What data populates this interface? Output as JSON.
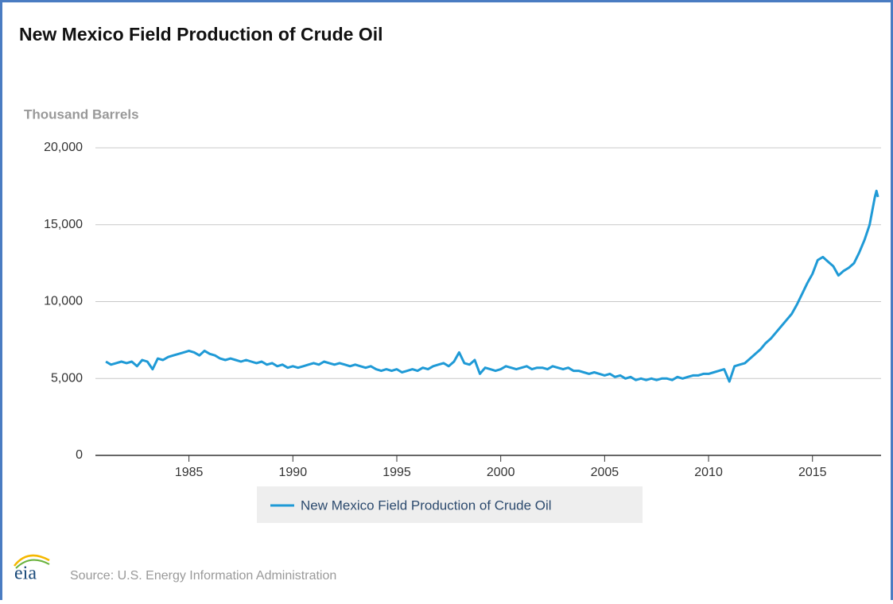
{
  "chart_data": {
    "type": "line",
    "title": "New Mexico Field Production of Crude Oil",
    "y_axis_label": "Thousand Barrels",
    "source": "Source: U.S. Energy Information Administration",
    "logo": "eia",
    "xlim": [
      1980.5,
      2018.3
    ],
    "xticks": [
      1985,
      1990,
      1995,
      2000,
      2005,
      2010,
      2015
    ],
    "ylim": [
      0,
      20000
    ],
    "yticks": [
      0,
      {
        "value": 5000,
        "label": "5,000"
      },
      {
        "value": 10000,
        "label": "10,000"
      },
      {
        "value": 15000,
        "label": "15,000"
      },
      {
        "value": 20000,
        "label": "20,000"
      }
    ],
    "grid": true,
    "legend": "bottom",
    "x": [
      1981,
      1981.25,
      1981.5,
      1981.75,
      1982,
      1982.25,
      1982.5,
      1982.75,
      1983,
      1983.25,
      1983.5,
      1983.75,
      1984,
      1984.25,
      1984.5,
      1984.75,
      1985,
      1985.25,
      1985.5,
      1985.75,
      1986,
      1986.25,
      1986.5,
      1986.75,
      1987,
      1987.25,
      1987.5,
      1987.75,
      1988,
      1988.25,
      1988.5,
      1988.75,
      1989,
      1989.25,
      1989.5,
      1989.75,
      1990,
      1990.25,
      1990.5,
      1990.75,
      1991,
      1991.25,
      1991.5,
      1991.75,
      1992,
      1992.25,
      1992.5,
      1992.75,
      1993,
      1993.25,
      1993.5,
      1993.75,
      1994,
      1994.25,
      1994.5,
      1994.75,
      1995,
      1995.25,
      1995.5,
      1995.75,
      1996,
      1996.25,
      1996.5,
      1996.75,
      1997,
      1997.25,
      1997.5,
      1997.75,
      1998,
      1998.25,
      1998.5,
      1998.75,
      1999,
      1999.25,
      1999.5,
      1999.75,
      2000,
      2000.25,
      2000.5,
      2000.75,
      2001,
      2001.25,
      2001.5,
      2001.75,
      2002,
      2002.25,
      2002.5,
      2002.75,
      2003,
      2003.25,
      2003.5,
      2003.75,
      2004,
      2004.25,
      2004.5,
      2004.75,
      2005,
      2005.25,
      2005.5,
      2005.75,
      2006,
      2006.25,
      2006.5,
      2006.75,
      2007,
      2007.25,
      2007.5,
      2007.75,
      2008,
      2008.25,
      2008.5,
      2008.75,
      2009,
      2009.25,
      2009.5,
      2009.75,
      2010,
      2010.25,
      2010.5,
      2010.75,
      2011,
      2011.25,
      2011.5,
      2011.75,
      2012,
      2012.25,
      2012.5,
      2012.75,
      2013,
      2013.25,
      2013.5,
      2013.75,
      2014,
      2014.25,
      2014.5,
      2014.75,
      2015,
      2015.25,
      2015.5,
      2015.75,
      2016,
      2016.25,
      2016.5,
      2016.75,
      2017,
      2017.25,
      2017.5,
      2017.75,
      2018,
      2018.08,
      2018.15
    ],
    "series": [
      {
        "name": "New Mexico Field Production of Crude Oil",
        "color": "#1f9ad6",
        "values": [
          6100,
          5900,
          6000,
          6100,
          6000,
          6100,
          5800,
          6200,
          6100,
          5600,
          6300,
          6200,
          6400,
          6500,
          6600,
          6700,
          6800,
          6700,
          6500,
          6800,
          6600,
          6500,
          6300,
          6200,
          6300,
          6200,
          6100,
          6200,
          6100,
          6000,
          6100,
          5900,
          6000,
          5800,
          5900,
          5700,
          5800,
          5700,
          5800,
          5900,
          6000,
          5900,
          6100,
          6000,
          5900,
          6000,
          5900,
          5800,
          5900,
          5800,
          5700,
          5800,
          5600,
          5500,
          5600,
          5500,
          5600,
          5400,
          5500,
          5600,
          5500,
          5700,
          5600,
          5800,
          5900,
          6000,
          5800,
          6100,
          6700,
          6000,
          5900,
          6200,
          5300,
          5700,
          5600,
          5500,
          5600,
          5800,
          5700,
          5600,
          5700,
          5800,
          5600,
          5700,
          5700,
          5600,
          5800,
          5700,
          5600,
          5700,
          5500,
          5500,
          5400,
          5300,
          5400,
          5300,
          5200,
          5300,
          5100,
          5200,
          5000,
          5100,
          4900,
          5000,
          4900,
          5000,
          4900,
          5000,
          5000,
          4900,
          5100,
          5000,
          5100,
          5200,
          5200,
          5300,
          5300,
          5400,
          5500,
          5600,
          4800,
          5800,
          5900,
          6000,
          6300,
          6600,
          6900,
          7300,
          7600,
          8000,
          8400,
          8800,
          9200,
          9800,
          10500,
          11200,
          11800,
          12700,
          12900,
          12600,
          12300,
          11700,
          12000,
          12200,
          12500,
          13200,
          14000,
          15000,
          16800,
          17200,
          16800
        ]
      }
    ]
  }
}
